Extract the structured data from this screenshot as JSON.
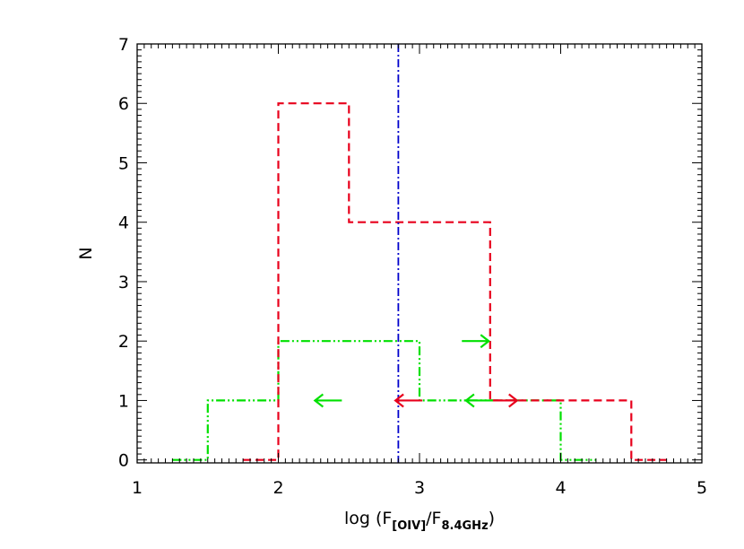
{
  "chart_data": {
    "type": "histogram",
    "title": "",
    "xlabel": {
      "prefix": "log (F",
      "sub1": "[OIV]",
      "mid": "/F",
      "sub2": "8.4GHz",
      "suffix": ")"
    },
    "ylabel": "N",
    "xlim": [
      1,
      5
    ],
    "ylim": [
      -0.05,
      7
    ],
    "x_ticks": [
      1,
      2,
      3,
      4,
      5
    ],
    "x_tick_labels": [
      "1",
      "2",
      "3",
      "4",
      "5"
    ],
    "y_ticks": [
      0,
      1,
      2,
      3,
      4,
      5,
      6,
      7
    ],
    "y_tick_labels": [
      "0",
      "1",
      "2",
      "3",
      "4",
      "5",
      "6",
      "7"
    ],
    "grid": false,
    "series": [
      {
        "style": "dashed",
        "color": "#e8001c",
        "steps": [
          [
            1.75,
            0
          ],
          [
            2.0,
            0
          ],
          [
            2.0,
            6
          ],
          [
            2.5,
            6
          ],
          [
            2.5,
            4
          ],
          [
            3.5,
            4
          ],
          [
            3.5,
            1
          ],
          [
            4.5,
            1
          ],
          [
            4.5,
            0
          ],
          [
            4.75,
            0
          ]
        ],
        "limits": [
          {
            "x": 3.02,
            "y": 1,
            "direction": "left"
          },
          {
            "x": 3.5,
            "y": 1,
            "direction": "right"
          }
        ]
      },
      {
        "style": "dash-dot-dot",
        "color": "#00e000",
        "steps": [
          [
            1.25,
            0
          ],
          [
            1.5,
            0
          ],
          [
            1.5,
            1
          ],
          [
            2.0,
            1
          ],
          [
            2.0,
            2
          ],
          [
            3.0,
            2
          ],
          [
            3.0,
            1
          ],
          [
            4.0,
            1
          ],
          [
            4.0,
            0
          ],
          [
            4.25,
            0
          ]
        ],
        "limits": [
          {
            "x": 2.45,
            "y": 1,
            "direction": "left"
          },
          {
            "x": 3.3,
            "y": 2,
            "direction": "right"
          },
          {
            "x": 3.52,
            "y": 1,
            "direction": "left"
          }
        ]
      }
    ],
    "reference_lines": [
      {
        "x": 2.85,
        "style": "dash-dot",
        "color": "#0000cc"
      }
    ]
  }
}
